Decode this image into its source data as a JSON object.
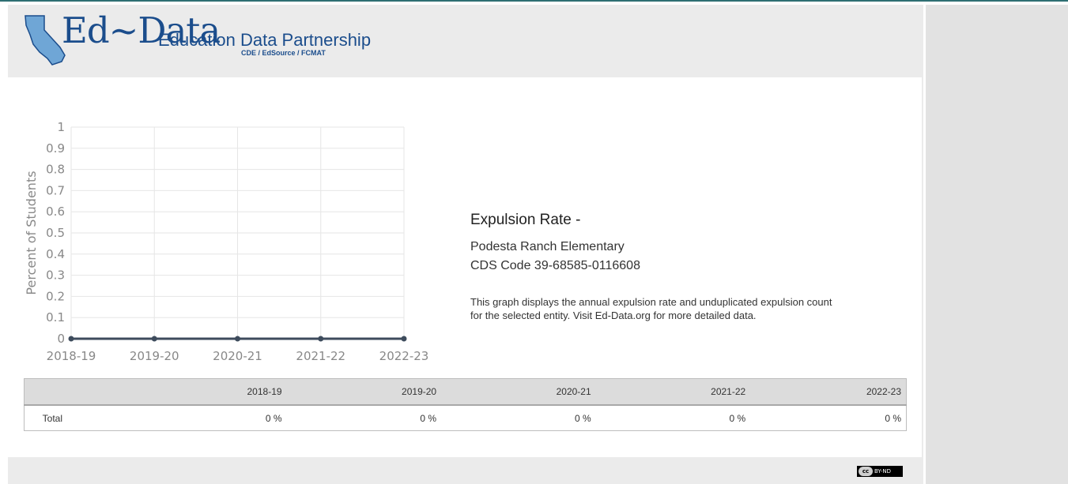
{
  "header": {
    "logo_main": "Ed~Data",
    "logo_partnership": "Education Data Partnership",
    "logo_sub": "CDE / EdSource / FCMAT"
  },
  "info": {
    "title": "Expulsion Rate -",
    "entity": "Podesta Ranch Elementary",
    "cds_code": "CDS Code 39-68585-0116608",
    "description": "This graph displays the annual expulsion rate and unduplicated expulsion count for the selected entity. Visit Ed-Data.org for more detailed data."
  },
  "chart_data": {
    "type": "line",
    "categories": [
      "2018-19",
      "2019-20",
      "2020-21",
      "2021-22",
      "2022-23"
    ],
    "series": [
      {
        "values": [
          0,
          0,
          0,
          0,
          0
        ],
        "color": "#3d4b5c"
      }
    ],
    "ylabel": "Percent of Students",
    "xlabel": "",
    "ylim": [
      0,
      1
    ],
    "yticks": [
      "0",
      "0.1",
      "0.2",
      "0.3",
      "0.4",
      "0.5",
      "0.6",
      "0.7",
      "0.8",
      "0.9",
      "1"
    ],
    "grid": true
  },
  "table": {
    "headers": [
      "",
      "2018-19",
      "2019-20",
      "2020-21",
      "2021-22",
      "2022-23"
    ],
    "rows": [
      {
        "label": "Total",
        "values": [
          "0 %",
          "0 %",
          "0 %",
          "0 %",
          "0 %"
        ]
      }
    ]
  },
  "footer": {
    "license_mark": "cc",
    "license_text": "BY-ND"
  }
}
